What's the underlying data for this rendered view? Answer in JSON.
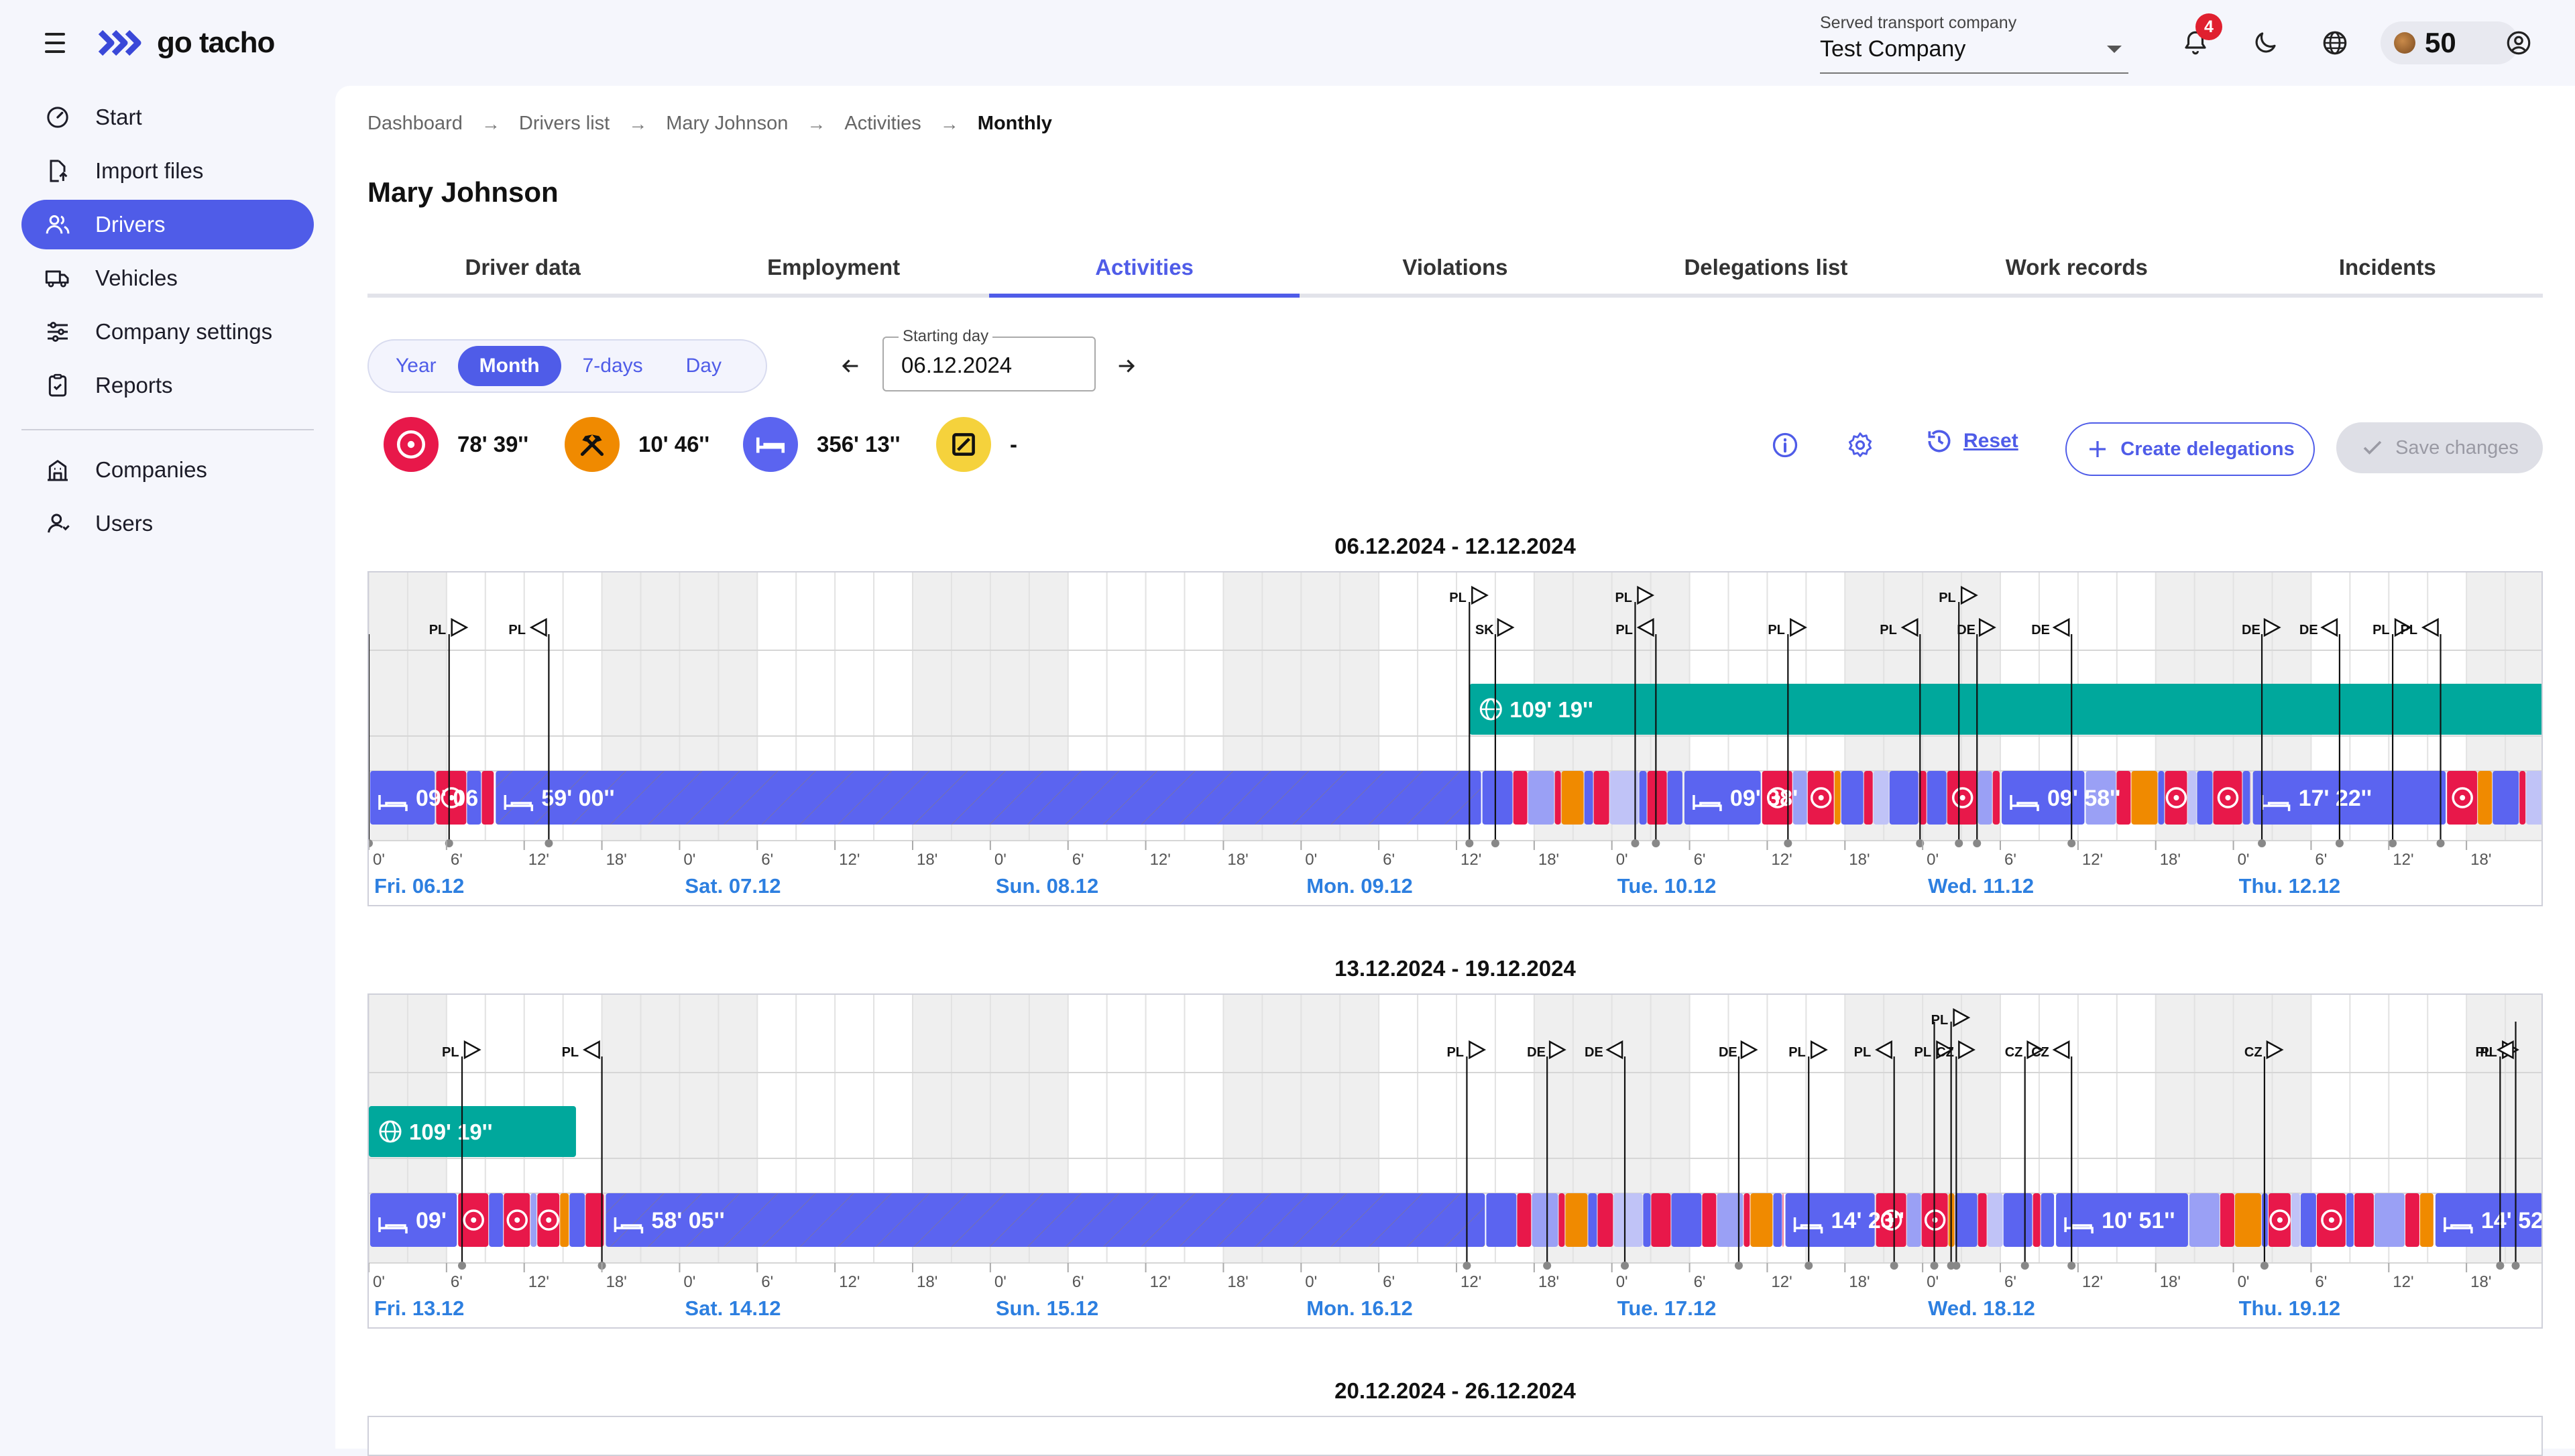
{
  "app": {
    "name": "go tacho"
  },
  "header": {
    "company_label": "Served transport company",
    "company_value": "Test Company",
    "notifications_count": "4",
    "credits": "50"
  },
  "sidebar": {
    "items": [
      {
        "label": "Start",
        "icon": "speedometer-icon"
      },
      {
        "label": "Import files",
        "icon": "import-file-icon"
      },
      {
        "label": "Drivers",
        "icon": "users-icon"
      },
      {
        "label": "Vehicles",
        "icon": "truck-icon"
      },
      {
        "label": "Company settings",
        "icon": "sliders-icon"
      },
      {
        "label": "Reports",
        "icon": "clipboard-icon"
      },
      {
        "label": "Companies",
        "icon": "building-icon"
      },
      {
        "label": "Users",
        "icon": "user-icon"
      }
    ],
    "active": "Drivers"
  },
  "breadcrumb": [
    "Dashboard",
    "Drivers list",
    "Mary Johnson",
    "Activities",
    "Monthly"
  ],
  "page_title": "Mary Johnson",
  "tabs": [
    "Driver data",
    "Employment",
    "Activities",
    "Violations",
    "Delegations list",
    "Work records",
    "Incidents"
  ],
  "active_tab": "Activities",
  "range_selector": {
    "options": [
      "Year",
      "Month",
      "7-days",
      "Day"
    ],
    "active": "Month"
  },
  "starting_day": {
    "label": "Starting day",
    "value": "06.12.2024"
  },
  "totals": {
    "driving": "78' 39''",
    "work": "10' 46''",
    "rest": "356' 13''",
    "availability": "-"
  },
  "actions": {
    "reset": "Reset",
    "create_delegations": "Create delegations",
    "save_changes": "Save changes"
  },
  "colors": {
    "accent": "#4f5ce8",
    "driving": "#e8184a",
    "work": "#f08a00",
    "rest": "#5b64f0",
    "availability": "#f5d23c",
    "delegation": "#00a89c",
    "day_label": "#2d7fe0"
  },
  "hour_ticks": [
    "0'",
    "6'",
    "12'",
    "18'"
  ],
  "weeks": [
    {
      "title": "06.12.2024 - 12.12.2024",
      "days": [
        "Fri. 06.12",
        "Sat. 07.12",
        "Sun. 08.12",
        "Mon. 09.12",
        "Tue. 10.12",
        "Wed. 11.12",
        "Thu. 12.12"
      ],
      "delegation_label": "109' 19''",
      "rest_labels": [
        "09' 06",
        "59' 00''",
        "09' 38'",
        "09' 58''",
        "17' 22''"
      ],
      "country_marks": [
        "PL",
        "PL",
        "PL",
        "SK",
        "PL",
        "PL",
        "PL",
        "PL",
        "PL",
        "DE",
        "DE",
        "DE",
        "DE",
        "PL",
        "PL"
      ]
    },
    {
      "title": "13.12.2024 - 19.12.2024",
      "days": [
        "Fri. 13.12",
        "Sat. 14.12",
        "Sun. 15.12",
        "Mon. 16.12",
        "Tue. 17.12",
        "Wed. 18.12",
        "Thu. 19.12"
      ],
      "delegation_label": "109' 19''",
      "rest_labels": [
        "09'",
        "58' 05''",
        "14' 23''",
        "10' 51''",
        "14' 52''"
      ],
      "country_marks": [
        "PL",
        "PL",
        "PL",
        "DE",
        "DE",
        "DE",
        "PL",
        "PL",
        "PL",
        "PL",
        "CZ",
        "CZ",
        "CZ",
        "CZ",
        "PL",
        "PL"
      ]
    },
    {
      "title": "20.12.2024 - 26.12.2024"
    }
  ]
}
